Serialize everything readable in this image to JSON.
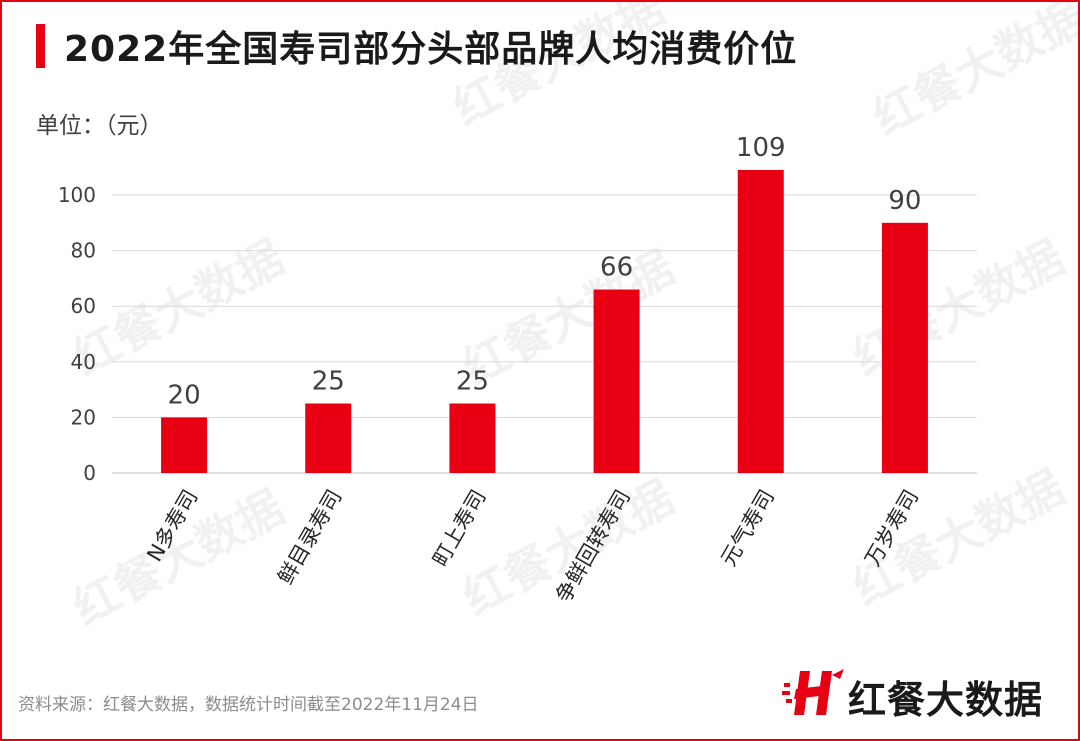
{
  "title": "2022年全国寿司部分头部品牌人均消费价位",
  "unit_label": "单位：（元）",
  "source_note": "资料来源：红餐大数据，数据统计时间截至2022年11月24日",
  "brand": {
    "name": "红餐大数据",
    "logo_icon": "hongcan-h-logo-icon"
  },
  "watermark_text": "红餐大数据",
  "colors": {
    "bar": "#e60012",
    "frame": "#e60012",
    "grid": "#d9d9d9"
  },
  "chart_data": {
    "type": "bar",
    "categories": [
      "N多寿司",
      "鲜目录寿司",
      "町上寿司",
      "争鲜回转寿司",
      "元气寿司",
      "万岁寿司"
    ],
    "values": [
      20,
      25,
      25,
      66,
      109,
      90
    ],
    "data_labels": [
      "20",
      "25",
      "25",
      "66",
      "109",
      "90"
    ],
    "title": "2022年全国寿司部分头部品牌人均消费价位",
    "ylabel": "单位：（元）",
    "y_ticks": [
      0,
      20,
      40,
      60,
      80,
      100
    ],
    "ylim": [
      0,
      100
    ],
    "grid": true,
    "legend": "none"
  }
}
